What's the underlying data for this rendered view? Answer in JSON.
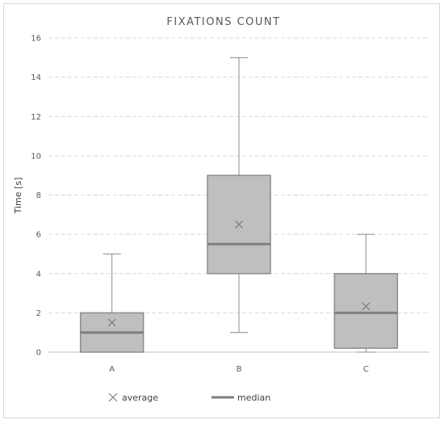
{
  "chart_data": {
    "type": "box",
    "title": "FIXATIONS COUNT",
    "xlabel": "",
    "ylabel": "Time [s]",
    "ylim": [
      0,
      16
    ],
    "yticks": [
      0,
      2,
      4,
      6,
      8,
      10,
      12,
      14,
      16
    ],
    "grid": true,
    "legend_position": "bottom",
    "categories": [
      "A",
      "B",
      "C"
    ],
    "boxes": [
      {
        "category": "A",
        "min": 0,
        "q1": 0,
        "median": 1,
        "q3": 2,
        "max": 5,
        "mean": 1.5
      },
      {
        "category": "B",
        "min": 1,
        "q1": 4,
        "median": 5.5,
        "q3": 9,
        "max": 15,
        "mean": 6.5
      },
      {
        "category": "C",
        "min": 0,
        "q1": 0.2,
        "median": 2,
        "q3": 4,
        "max": 6,
        "mean": 2.33
      }
    ],
    "legend": [
      {
        "symbol": "x-marker",
        "label": "average"
      },
      {
        "symbol": "line",
        "label": "median"
      }
    ],
    "colors": {
      "box_fill": "#bfbfbf",
      "box_stroke": "#8c8c8c",
      "median": "#7f7f7f",
      "whisker": "#8c8c8c",
      "mean_marker": "#7f7f7f",
      "grid": "#d9d9d9",
      "text": "#595959"
    }
  }
}
